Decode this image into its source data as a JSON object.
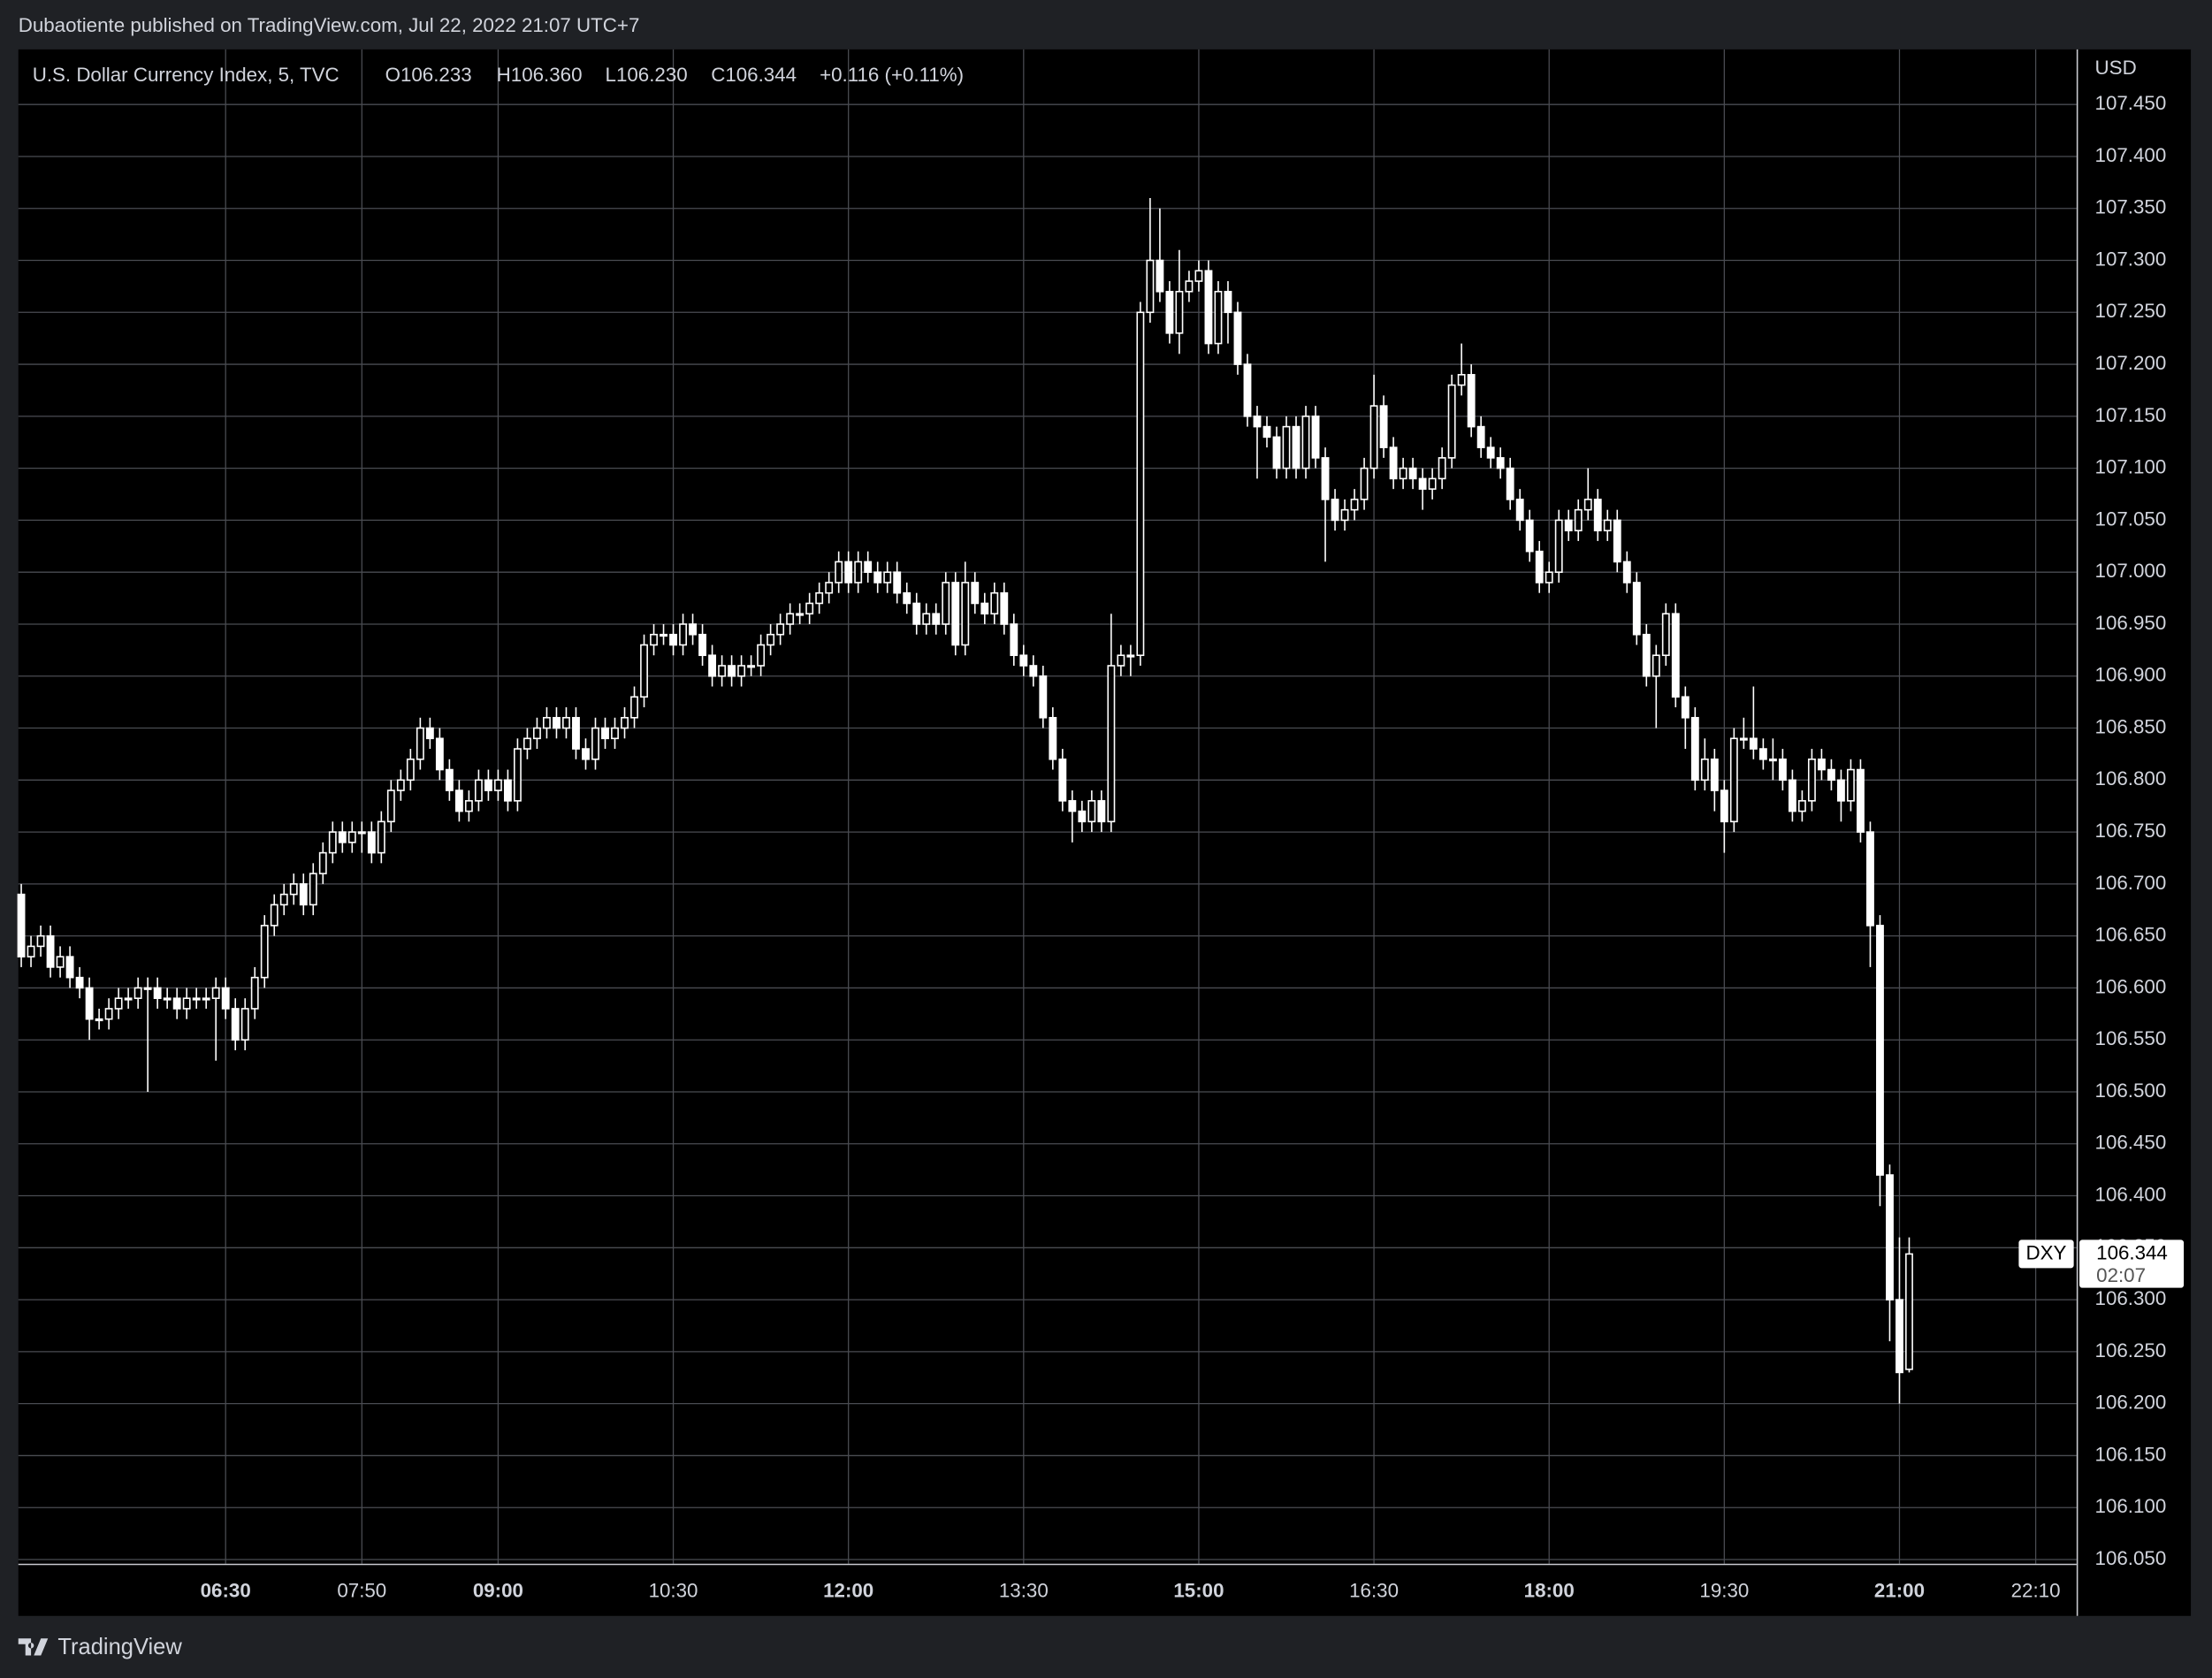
{
  "header": {
    "published": "Dubaotiente published on TradingView.com, Jul 22, 2022 21:07 UTC+7"
  },
  "legend": {
    "symbol": "U.S. Dollar Currency Index, 5, TVC",
    "open": "O106.233",
    "high": "H106.360",
    "low": "L106.230",
    "close": "C106.344",
    "change": "+0.116 (+0.11%)"
  },
  "footer": {
    "brand": "TradingView"
  },
  "chart_data": {
    "type": "candlestick",
    "price_unit": "USD",
    "countdown": "02:07",
    "grid": true,
    "xlim": [
      -0.3,
      211.2
    ],
    "xticks": [
      {
        "value": 21,
        "label": "06:30"
      },
      {
        "value": 35,
        "label": "07:50"
      },
      {
        "value": 49,
        "label": "09:00"
      },
      {
        "value": 67,
        "label": "10:30"
      },
      {
        "value": 85,
        "label": "12:00"
      },
      {
        "value": 103,
        "label": "13:30"
      },
      {
        "value": 121,
        "label": "15:00"
      },
      {
        "value": 139,
        "label": "16:30"
      },
      {
        "value": 157,
        "label": "18:00"
      },
      {
        "value": 175,
        "label": "19:30"
      },
      {
        "value": 193,
        "label": "21:00"
      },
      {
        "value": 207,
        "label": "22:10"
      }
    ],
    "ylim": [
      106.046,
      107.503
    ],
    "yticks": [
      {
        "value": 106.05,
        "label": "106.050"
      },
      {
        "value": 106.1,
        "label": "106.100"
      },
      {
        "value": 106.15,
        "label": "106.150"
      },
      {
        "value": 106.2,
        "label": "106.200"
      },
      {
        "value": 106.25,
        "label": "106.250"
      },
      {
        "value": 106.3,
        "label": "106.300"
      },
      {
        "value": 106.35,
        "label": "106.350"
      },
      {
        "value": 106.4,
        "label": "106.400"
      },
      {
        "value": 106.45,
        "label": "106.450"
      },
      {
        "value": 106.5,
        "label": "106.500"
      },
      {
        "value": 106.55,
        "label": "106.550"
      },
      {
        "value": 106.6,
        "label": "106.600"
      },
      {
        "value": 106.65,
        "label": "106.650"
      },
      {
        "value": 106.7,
        "label": "106.700"
      },
      {
        "value": 106.75,
        "label": "106.750"
      },
      {
        "value": 106.8,
        "label": "106.800"
      },
      {
        "value": 106.85,
        "label": "106.850"
      },
      {
        "value": 106.9,
        "label": "106.900"
      },
      {
        "value": 106.95,
        "label": "106.950"
      },
      {
        "value": 107,
        "label": "107.000"
      },
      {
        "value": 107.05,
        "label": "107.050"
      },
      {
        "value": 107.1,
        "label": "107.100"
      },
      {
        "value": 107.15,
        "label": "107.150"
      },
      {
        "value": 107.2,
        "label": "107.200"
      },
      {
        "value": 107.25,
        "label": "107.250"
      },
      {
        "value": 107.3,
        "label": "107.300"
      },
      {
        "value": 107.35,
        "label": "107.350"
      },
      {
        "value": 107.4,
        "label": "107.400"
      },
      {
        "value": 107.45,
        "label": "107.450"
      }
    ],
    "series": [
      {
        "name": "DXY",
        "color": "#ffffff",
        "open": [
          106.69,
          106.63,
          106.64,
          106.65,
          106.62,
          106.63,
          106.61,
          106.6,
          106.57,
          106.57,
          106.58,
          106.59,
          106.59,
          106.6,
          106.6,
          106.59,
          106.59,
          106.58,
          106.59,
          106.59,
          106.59,
          106.6,
          106.58,
          106.55,
          106.58,
          106.61,
          106.66,
          106.68,
          106.69,
          106.7,
          106.68,
          106.71,
          106.73,
          106.75,
          106.74,
          106.75,
          106.75,
          106.73,
          106.76,
          106.79,
          106.8,
          106.82,
          106.85,
          106.84,
          106.81,
          106.79,
          106.77,
          106.78,
          106.8,
          106.79,
          106.8,
          106.78,
          106.83,
          106.84,
          106.85,
          106.86,
          106.85,
          106.86,
          106.83,
          106.82,
          106.85,
          106.84,
          106.85,
          106.86,
          106.88,
          106.93,
          106.94,
          106.94,
          106.93,
          106.95,
          106.94,
          106.92,
          106.9,
          106.91,
          106.9,
          106.91,
          106.91,
          106.93,
          106.94,
          106.95,
          106.96,
          106.96,
          106.97,
          106.98,
          106.99,
          107.01,
          106.99,
          107.01,
          107.0,
          106.99,
          107.0,
          106.98,
          106.97,
          106.95,
          106.96,
          106.95,
          106.99,
          106.93,
          106.99,
          106.97,
          106.96,
          106.98,
          106.95,
          106.92,
          106.91,
          106.9,
          106.86,
          106.82,
          106.78,
          106.77,
          106.76,
          106.78,
          106.76,
          106.91,
          106.92,
          106.92,
          107.25,
          107.3,
          107.27,
          107.23,
          107.27,
          107.28,
          107.29,
          107.22,
          107.27,
          107.25,
          107.2,
          107.15,
          107.14,
          107.13,
          107.1,
          107.14,
          107.1,
          107.15,
          107.11,
          107.07,
          107.05,
          107.06,
          107.07,
          107.1,
          107.16,
          107.12,
          107.09,
          107.1,
          107.09,
          107.08,
          107.09,
          107.11,
          107.18,
          107.19,
          107.14,
          107.12,
          107.11,
          107.1,
          107.07,
          107.05,
          107.02,
          106.99,
          107.0,
          107.05,
          107.04,
          107.06,
          107.07,
          107.04,
          107.05,
          107.01,
          106.99,
          106.94,
          106.9,
          106.92,
          106.96,
          106.88,
          106.86,
          106.8,
          106.82,
          106.79,
          106.76,
          106.84,
          106.84,
          106.83,
          106.82,
          106.82,
          106.8,
          106.77,
          106.78,
          106.82,
          106.81,
          106.8,
          106.78,
          106.81,
          106.75,
          106.66,
          106.42,
          106.3,
          106.233
        ],
        "high": [
          106.7,
          106.65,
          106.66,
          106.66,
          106.64,
          106.64,
          106.62,
          106.61,
          106.58,
          106.59,
          106.6,
          106.6,
          106.61,
          106.61,
          106.61,
          106.6,
          106.6,
          106.6,
          106.6,
          106.6,
          106.61,
          106.61,
          106.59,
          106.59,
          106.62,
          106.67,
          106.69,
          106.7,
          106.71,
          106.71,
          106.72,
          106.74,
          106.76,
          106.76,
          106.76,
          106.76,
          106.76,
          106.77,
          106.8,
          106.81,
          106.83,
          106.86,
          106.86,
          106.85,
          106.82,
          106.8,
          106.79,
          106.81,
          106.81,
          106.81,
          106.81,
          106.84,
          106.85,
          106.86,
          106.87,
          106.87,
          106.87,
          106.87,
          106.84,
          106.86,
          106.86,
          106.86,
          106.87,
          106.89,
          106.94,
          106.95,
          106.95,
          106.95,
          106.96,
          106.96,
          106.95,
          106.93,
          106.92,
          106.92,
          106.92,
          106.92,
          106.94,
          106.95,
          106.96,
          106.97,
          106.97,
          106.98,
          106.99,
          107.0,
          107.02,
          107.02,
          107.02,
          107.02,
          107.01,
          107.01,
          107.01,
          106.99,
          106.98,
          106.97,
          106.97,
          107.0,
          107.0,
          107.01,
          107.0,
          106.98,
          106.99,
          106.99,
          106.96,
          106.93,
          106.92,
          106.91,
          106.87,
          106.83,
          106.79,
          106.78,
          106.79,
          106.79,
          106.96,
          106.93,
          106.93,
          107.26,
          107.36,
          107.35,
          107.28,
          107.31,
          107.29,
          107.3,
          107.3,
          107.28,
          107.28,
          107.26,
          107.21,
          107.16,
          107.15,
          107.14,
          107.15,
          107.15,
          107.16,
          107.16,
          107.12,
          107.08,
          107.07,
          107.08,
          107.11,
          107.19,
          107.17,
          107.13,
          107.11,
          107.11,
          107.1,
          107.1,
          107.12,
          107.19,
          107.22,
          107.2,
          107.15,
          107.13,
          107.12,
          107.11,
          107.08,
          107.06,
          107.03,
          107.01,
          107.06,
          107.06,
          107.07,
          107.1,
          107.08,
          107.06,
          107.06,
          107.02,
          107.0,
          106.95,
          106.93,
          106.97,
          106.97,
          106.89,
          106.87,
          106.84,
          106.83,
          106.8,
          106.85,
          106.86,
          106.89,
          106.84,
          106.84,
          106.83,
          106.81,
          106.79,
          106.83,
          106.83,
          106.82,
          106.81,
          106.82,
          106.82,
          106.76,
          106.67,
          106.43,
          106.36,
          106.36
        ],
        "low": [
          106.62,
          106.62,
          106.63,
          106.61,
          106.61,
          106.6,
          106.59,
          106.55,
          106.56,
          106.56,
          106.57,
          106.58,
          106.58,
          106.5,
          106.58,
          106.58,
          106.57,
          106.57,
          106.58,
          106.58,
          106.53,
          106.57,
          106.54,
          106.54,
          106.57,
          106.6,
          106.65,
          106.67,
          106.68,
          106.67,
          106.67,
          106.7,
          106.72,
          106.73,
          106.73,
          106.73,
          106.72,
          106.72,
          106.75,
          106.78,
          106.79,
          106.81,
          106.83,
          106.8,
          106.78,
          106.76,
          106.76,
          106.77,
          106.78,
          106.78,
          106.77,
          106.77,
          106.82,
          106.83,
          106.84,
          106.84,
          106.84,
          106.82,
          106.81,
          106.81,
          106.83,
          106.83,
          106.84,
          106.85,
          106.87,
          106.92,
          106.93,
          106.92,
          106.92,
          106.93,
          106.91,
          106.89,
          106.89,
          106.89,
          106.89,
          106.9,
          106.9,
          106.92,
          106.93,
          106.94,
          106.95,
          106.95,
          106.96,
          106.97,
          106.98,
          106.98,
          106.98,
          106.99,
          106.98,
          106.98,
          106.97,
          106.96,
          106.94,
          106.94,
          106.94,
          106.94,
          106.92,
          106.92,
          106.96,
          106.95,
          106.95,
          106.94,
          106.91,
          106.9,
          106.89,
          106.85,
          106.81,
          106.77,
          106.74,
          106.75,
          106.75,
          106.75,
          106.75,
          106.9,
          106.9,
          106.91,
          107.24,
          107.26,
          107.22,
          107.21,
          107.26,
          107.27,
          107.21,
          107.21,
          107.22,
          107.19,
          107.14,
          107.09,
          107.12,
          107.09,
          107.09,
          107.09,
          107.09,
          107.1,
          107.01,
          107.04,
          107.04,
          107.05,
          107.06,
          107.09,
          107.11,
          107.08,
          107.08,
          107.08,
          107.06,
          107.07,
          107.08,
          107.1,
          107.17,
          107.13,
          107.11,
          107.1,
          107.09,
          107.06,
          107.04,
          107.01,
          106.98,
          106.98,
          106.99,
          107.03,
          107.03,
          107.05,
          107.03,
          107.03,
          107.0,
          106.98,
          106.93,
          106.89,
          106.85,
          106.91,
          106.87,
          106.83,
          106.79,
          106.79,
          106.77,
          106.73,
          106.75,
          106.83,
          106.82,
          106.81,
          106.8,
          106.79,
          106.76,
          106.76,
          106.77,
          106.8,
          106.79,
          106.76,
          106.77,
          106.74,
          106.62,
          106.39,
          106.26,
          106.2,
          106.23
        ],
        "close": [
          106.63,
          106.64,
          106.65,
          106.62,
          106.63,
          106.61,
          106.6,
          106.57,
          106.57,
          106.58,
          106.59,
          106.59,
          106.6,
          106.6,
          106.59,
          106.59,
          106.58,
          106.59,
          106.59,
          106.59,
          106.6,
          106.58,
          106.55,
          106.58,
          106.61,
          106.66,
          106.68,
          106.69,
          106.7,
          106.68,
          106.71,
          106.73,
          106.75,
          106.74,
          106.75,
          106.75,
          106.73,
          106.76,
          106.79,
          106.8,
          106.82,
          106.85,
          106.84,
          106.81,
          106.79,
          106.77,
          106.78,
          106.8,
          106.79,
          106.8,
          106.78,
          106.83,
          106.84,
          106.85,
          106.86,
          106.85,
          106.86,
          106.83,
          106.82,
          106.85,
          106.84,
          106.85,
          106.86,
          106.88,
          106.93,
          106.94,
          106.94,
          106.93,
          106.95,
          106.94,
          106.92,
          106.9,
          106.91,
          106.9,
          106.91,
          106.91,
          106.93,
          106.94,
          106.95,
          106.96,
          106.96,
          106.97,
          106.98,
          106.99,
          107.01,
          106.99,
          107.01,
          107.0,
          106.99,
          107.0,
          106.98,
          106.97,
          106.95,
          106.96,
          106.95,
          106.99,
          106.93,
          106.99,
          106.97,
          106.96,
          106.98,
          106.95,
          106.92,
          106.91,
          106.9,
          106.86,
          106.82,
          106.78,
          106.77,
          106.76,
          106.78,
          106.76,
          106.91,
          106.92,
          106.92,
          107.25,
          107.3,
          107.27,
          107.23,
          107.27,
          107.28,
          107.29,
          107.22,
          107.27,
          107.25,
          107.2,
          107.15,
          107.14,
          107.13,
          107.1,
          107.14,
          107.1,
          107.15,
          107.11,
          107.07,
          107.05,
          107.06,
          107.07,
          107.1,
          107.16,
          107.12,
          107.09,
          107.1,
          107.09,
          107.08,
          107.09,
          107.11,
          107.18,
          107.19,
          107.14,
          107.12,
          107.11,
          107.1,
          107.07,
          107.05,
          107.02,
          106.99,
          107.0,
          107.05,
          107.04,
          107.06,
          107.07,
          107.04,
          107.05,
          107.01,
          106.99,
          106.94,
          106.9,
          106.92,
          106.96,
          106.88,
          106.86,
          106.8,
          106.82,
          106.79,
          106.76,
          106.84,
          106.84,
          106.83,
          106.82,
          106.82,
          106.8,
          106.77,
          106.78,
          106.82,
          106.81,
          106.8,
          106.78,
          106.81,
          106.75,
          106.66,
          106.42,
          106.3,
          106.23,
          106.344
        ]
      }
    ]
  }
}
